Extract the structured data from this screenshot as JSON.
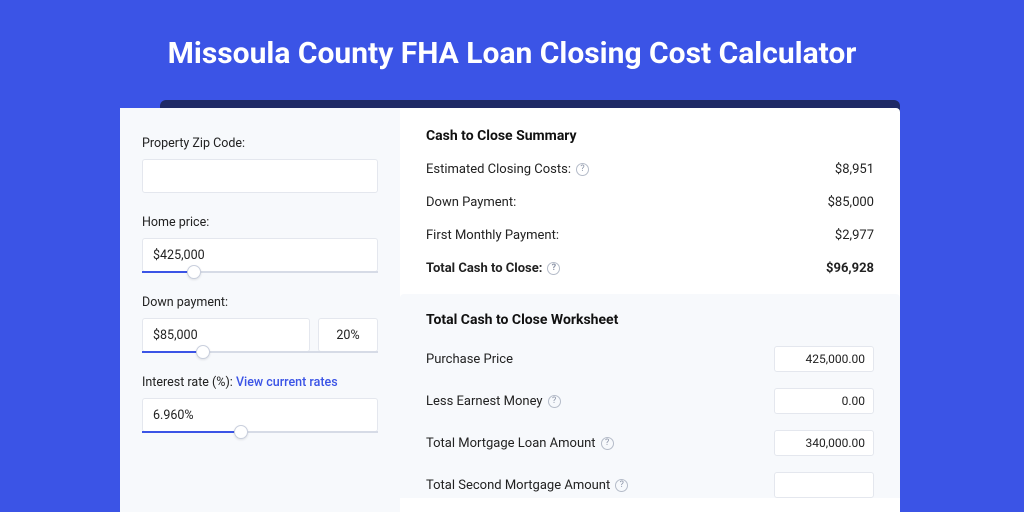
{
  "page": {
    "title": "Missoula County FHA Loan Closing Cost Calculator",
    "colors": {
      "bg": "#3b54e6",
      "shadow": "#1f2a66",
      "panel_bg": "#f7f9fc",
      "border": "#e4e7ee",
      "link": "#3b54e6"
    }
  },
  "left": {
    "zip": {
      "label": "Property Zip Code:",
      "value": ""
    },
    "home_price": {
      "label": "Home price:",
      "value": "$425,000",
      "slider_pct": 22
    },
    "down_payment": {
      "label": "Down payment:",
      "value": "$85,000",
      "pct": "20%",
      "slider_pct": 26
    },
    "interest": {
      "label": "Interest rate (%):",
      "link": "View current rates",
      "value": "6.960%",
      "slider_pct": 42
    }
  },
  "summary": {
    "title": "Cash to Close Summary",
    "rows": {
      "closing_costs": {
        "label": "Estimated Closing Costs:",
        "value": "$8,951",
        "help": true
      },
      "down_payment": {
        "label": "Down Payment:",
        "value": "$85,000",
        "help": false
      },
      "first_monthly": {
        "label": "First Monthly Payment:",
        "value": "$2,977",
        "help": false
      },
      "total": {
        "label": "Total Cash to Close:",
        "value": "$96,928",
        "help": true
      }
    }
  },
  "worksheet": {
    "title": "Total Cash to Close Worksheet",
    "rows": {
      "purchase_price": {
        "label": "Purchase Price",
        "value": "425,000.00",
        "help": false
      },
      "less_earnest": {
        "label": "Less Earnest Money",
        "value": "0.00",
        "help": true
      },
      "total_mortgage": {
        "label": "Total Mortgage Loan Amount",
        "value": "340,000.00",
        "help": true
      },
      "second_mortgage": {
        "label": "Total Second Mortgage Amount",
        "value": "",
        "help": true
      }
    }
  }
}
